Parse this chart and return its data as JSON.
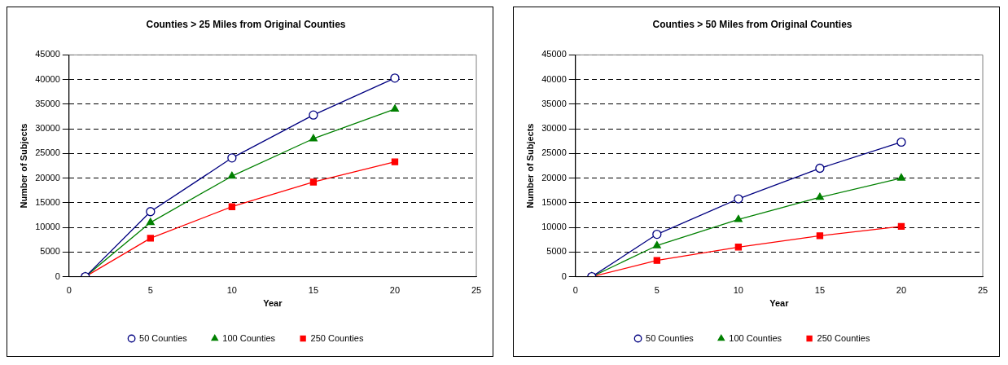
{
  "chart_data": [
    {
      "type": "line",
      "title": "Counties > 25 Miles from Original Counties",
      "xlabel": "Year",
      "ylabel": "Number of Subjects",
      "x": [
        1,
        5,
        10,
        15,
        20
      ],
      "xlim": [
        0,
        25
      ],
      "xticks": [
        0,
        5,
        10,
        15,
        20,
        25
      ],
      "ylim": [
        0,
        45000
      ],
      "yticks": [
        0,
        5000,
        10000,
        15000,
        20000,
        25000,
        30000,
        35000,
        40000,
        45000
      ],
      "grid": "y",
      "legend": "bottom",
      "series": [
        {
          "name": "50 Counties",
          "color": "#000080",
          "marker": "circle",
          "values": [
            0,
            13200,
            24100,
            32800,
            40300
          ]
        },
        {
          "name": "100 Counties",
          "color": "#008000",
          "marker": "triangle",
          "values": [
            0,
            11000,
            20400,
            28000,
            34000
          ]
        },
        {
          "name": "250 Counties",
          "color": "#ff0000",
          "marker": "square",
          "values": [
            0,
            7800,
            14200,
            19200,
            23300
          ]
        }
      ]
    },
    {
      "type": "line",
      "title": "Counties > 50 Miles from Original Counties",
      "xlabel": "Year",
      "ylabel": "Number of Subjects",
      "x": [
        1,
        5,
        10,
        15,
        20
      ],
      "xlim": [
        0,
        25
      ],
      "xticks": [
        0,
        5,
        10,
        15,
        20,
        25
      ],
      "ylim": [
        0,
        45000
      ],
      "yticks": [
        0,
        5000,
        10000,
        15000,
        20000,
        25000,
        30000,
        35000,
        40000,
        45000
      ],
      "grid": "y",
      "legend": "bottom",
      "series": [
        {
          "name": "50 Counties",
          "color": "#000080",
          "marker": "circle",
          "values": [
            0,
            8600,
            15800,
            22000,
            27300
          ]
        },
        {
          "name": "100 Counties",
          "color": "#008000",
          "marker": "triangle",
          "values": [
            0,
            6300,
            11600,
            16100,
            20000
          ]
        },
        {
          "name": "250 Counties",
          "color": "#ff0000",
          "marker": "square",
          "values": [
            0,
            3300,
            6000,
            8300,
            10200
          ]
        }
      ]
    }
  ]
}
